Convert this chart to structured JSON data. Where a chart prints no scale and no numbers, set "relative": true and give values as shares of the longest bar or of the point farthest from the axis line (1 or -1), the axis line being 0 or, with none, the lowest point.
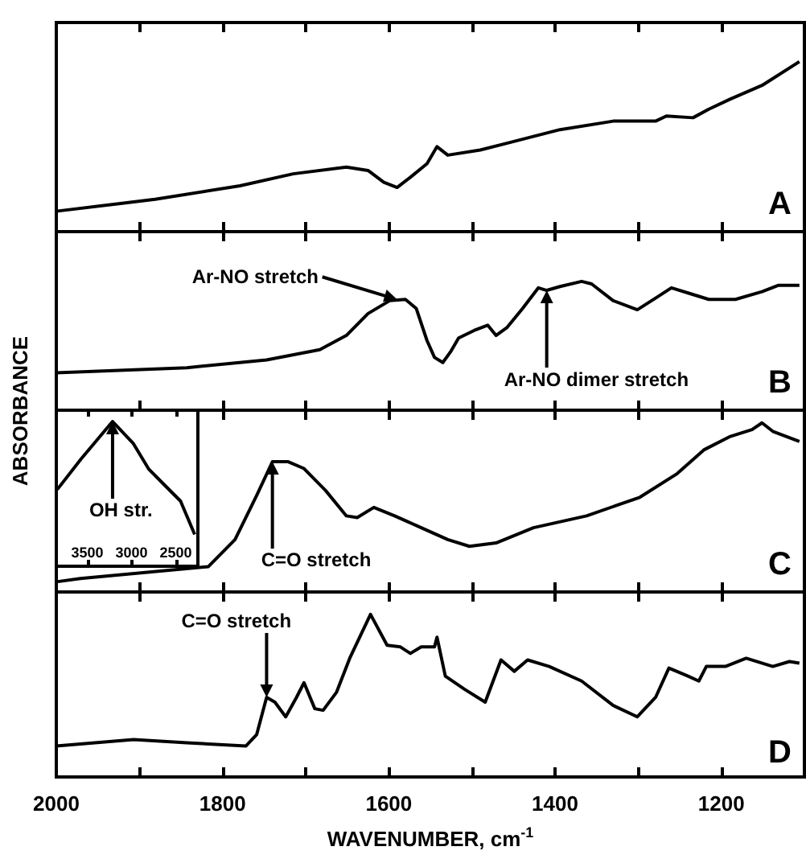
{
  "chart_data": [
    {
      "type": "line",
      "relative": true,
      "color": "#000000",
      "marker": "none",
      "tick_labels": false,
      "xlim": [
        2000,
        1100
      ],
      "xticks": [
        2000,
        {
          "value": 1900,
          "label": null
        },
        1800,
        {
          "value": 1700,
          "label": null
        },
        1600,
        {
          "value": 1500,
          "label": null
        },
        1400,
        {
          "value": 1300,
          "label": null
        },
        1200
      ],
      "x": [
        2000,
        1881,
        1779,
        1715,
        1651,
        1625,
        1606,
        1590,
        1574,
        1554,
        1542,
        1529,
        1490,
        1458,
        1394,
        1330,
        1279,
        1266,
        1234,
        1215,
        1189,
        1151,
        1106
      ],
      "values": [
        0.12,
        0.19,
        0.27,
        0.34,
        0.38,
        0.36,
        0.29,
        0.26,
        0.32,
        0.4,
        0.5,
        0.45,
        0.48,
        0.52,
        0.6,
        0.65,
        0.65,
        0.68,
        0.67,
        0.72,
        0.78,
        0.86,
        1
      ],
      "annotations": [
        "A"
      ]
    },
    {
      "type": "line",
      "relative": true,
      "color": "#000000",
      "marker": "none",
      "tick_labels": false,
      "ylabel": "ABSORBANCE",
      "xlim": [
        2000,
        1100
      ],
      "xticks": [
        2000,
        {
          "value": 1900,
          "label": null
        },
        1800,
        {
          "value": 1700,
          "label": null
        },
        1600,
        {
          "value": 1500,
          "label": null
        },
        1400,
        {
          "value": 1300,
          "label": null
        },
        1200
      ],
      "x": [
        2000,
        1843,
        1747,
        1683,
        1651,
        1625,
        1599,
        1580,
        1567,
        1554,
        1545,
        1535,
        1525,
        1516,
        1497,
        1481,
        1471,
        1458,
        1439,
        1420,
        1410,
        1394,
        1368,
        1356,
        1330,
        1301,
        1279,
        1260,
        1240,
        1215,
        1183,
        1151,
        1131,
        1106
      ],
      "values": [
        0.29,
        0.33,
        0.39,
        0.47,
        0.58,
        0.75,
        0.85,
        0.86,
        0.79,
        0.54,
        0.41,
        0.37,
        0.46,
        0.56,
        0.62,
        0.66,
        0.58,
        0.64,
        0.79,
        0.95,
        0.93,
        0.96,
        1,
        0.98,
        0.85,
        0.78,
        0.87,
        0.95,
        0.91,
        0.86,
        0.86,
        0.92,
        0.97,
        0.97
      ],
      "annotations": [
        {
          "text": "Ar-NO stretch",
          "x": 1590,
          "y": 0.86
        },
        {
          "text": "Ar-NO dimer stretch",
          "x": 1410,
          "y": 0.93
        },
        "B"
      ]
    },
    {
      "type": "line",
      "relative": true,
      "color": "#000000",
      "marker": "none",
      "tick_labels": false,
      "xlim": [
        2000,
        1100
      ],
      "xticks": [
        2000,
        {
          "value": 1900,
          "label": null
        },
        1800,
        {
          "value": 1700,
          "label": null
        },
        1600,
        {
          "value": 1500,
          "label": null
        },
        1400,
        {
          "value": 1300,
          "label": null
        },
        1200
      ],
      "x": [
        2000,
        1971,
        1817,
        1785,
        1759,
        1740,
        1721,
        1702,
        1676,
        1651,
        1638,
        1618,
        1593,
        1561,
        1529,
        1503,
        1471,
        1426,
        1362,
        1298,
        1253,
        1221,
        1189,
        1163,
        1151,
        1138,
        1106
      ],
      "values": [
        0.06,
        0.08,
        0.15,
        0.31,
        0.57,
        0.77,
        0.77,
        0.73,
        0.6,
        0.45,
        0.44,
        0.5,
        0.45,
        0.38,
        0.31,
        0.27,
        0.29,
        0.38,
        0.45,
        0.56,
        0.7,
        0.84,
        0.92,
        0.96,
        1,
        0.95,
        0.89
      ],
      "annotations": [
        {
          "text": "C=O stretch",
          "x": 1740,
          "y": 0.77
        },
        "C"
      ]
    },
    {
      "type": "line",
      "relative": true,
      "color": "#000000",
      "marker": "none",
      "xlabel": "WAVENUMBER, cm$^{-1}$",
      "xlim": [
        2000,
        1100
      ],
      "xticks": [
        2000,
        {
          "value": 1900,
          "label": null
        },
        1800,
        {
          "value": 1700,
          "label": null
        },
        1600,
        {
          "value": 1500,
          "label": null
        },
        1400,
        {
          "value": 1300,
          "label": null
        },
        1200
      ],
      "x": [
        2000,
        1907,
        1843,
        1772,
        1759,
        1747,
        1737,
        1724,
        1711,
        1702,
        1689,
        1679,
        1663,
        1647,
        1622,
        1602,
        1586,
        1574,
        1561,
        1545,
        1542,
        1532,
        1509,
        1484,
        1465,
        1449,
        1433,
        1407,
        1368,
        1330,
        1301,
        1279,
        1263,
        1240,
        1227,
        1218,
        1195,
        1170,
        1138,
        1118,
        1106
      ],
      "values": [
        0.19,
        0.23,
        0.21,
        0.19,
        0.26,
        0.49,
        0.46,
        0.37,
        0.49,
        0.58,
        0.42,
        0.41,
        0.52,
        0.73,
        1,
        0.81,
        0.8,
        0.76,
        0.8,
        0.8,
        0.86,
        0.62,
        0.54,
        0.46,
        0.72,
        0.65,
        0.72,
        0.68,
        0.59,
        0.44,
        0.37,
        0.49,
        0.67,
        0.62,
        0.59,
        0.68,
        0.68,
        0.73,
        0.68,
        0.71,
        0.7
      ],
      "annotations": [
        {
          "text": "C=O stretch",
          "x": 1747,
          "y": 0.49
        },
        "D"
      ]
    },
    {
      "type": "line",
      "relative": true,
      "color": "#000000",
      "marker": "none",
      "xlim": [
        3850,
        2250
      ],
      "xticks": [
        3500,
        3000,
        2500
      ],
      "x": [
        3839,
        3571,
        3214,
        2982,
        2804,
        2625,
        2446,
        2286
      ],
      "values": [
        0.53,
        0.74,
        1,
        0.85,
        0.67,
        0.56,
        0.45,
        0.22
      ],
      "annotations": [
        {
          "text": "OH str.",
          "x": 3214,
          "y": 1
        }
      ]
    }
  ]
}
